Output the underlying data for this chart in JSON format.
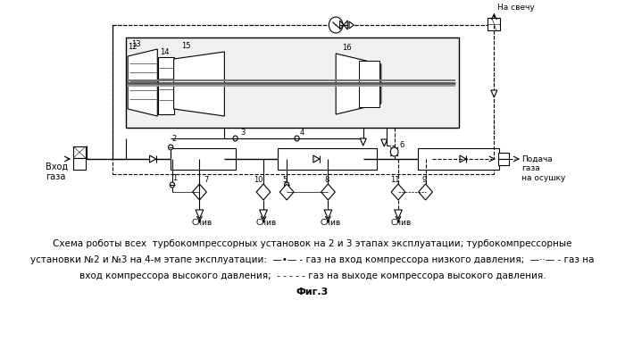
{
  "fig_caption_line1": "Схема роботы всех  турбокомпрессорных установок на 2 и 3 этапах эксплуатации; турбокомпрессорные",
  "fig_caption_line2": "установки №2 и №3 на 4-м этапе эксплуатации:  —•— - газ на вход компрессора низкого давления;  —··— - газ на",
  "fig_caption_line3": "вход компрессора высокого давления;  - - - - - газ на выходе компрессора высокого давления.",
  "fig_label": "Фиг.3",
  "background_color": "#ffffff",
  "text_color": "#000000",
  "label_na_svechu": "На свечу",
  "label_vhod_gaza": "Вход\nгаза",
  "label_podacha": "Подача\nгаза\nна осушку",
  "label_sliv": "Слив"
}
